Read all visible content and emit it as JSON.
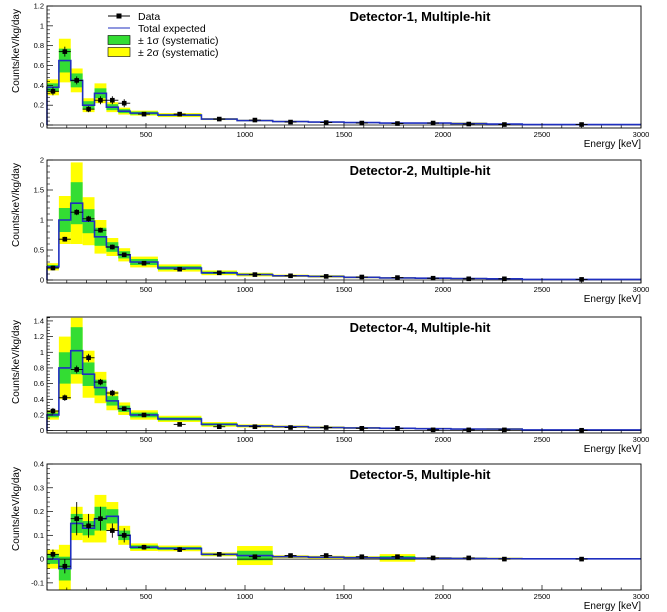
{
  "colors": {
    "total_expected": "#1f2fbf",
    "band_1sigma": "#33dd33",
    "band_2sigma": "#ffff00",
    "data": "#000000"
  },
  "legend": [
    {
      "label": "Data",
      "kind": "data"
    },
    {
      "label": "Total expected",
      "kind": "line"
    },
    {
      "label": "± 1σ (systematic)",
      "kind": "band1"
    },
    {
      "label": "± 2σ (systematic)",
      "kind": "band2"
    }
  ],
  "chart_data": [
    {
      "type": "histogram",
      "title": "Detector-1, Multiple-hit",
      "xlabel": "Energy [keV]",
      "ylabel": "Counts/keV/kg/day",
      "xlim": [
        0,
        3000
      ],
      "ylim": [
        -0.03,
        1.2
      ],
      "xticks": [
        500,
        1000,
        1500,
        2000,
        2500,
        3000
      ],
      "yticks": [
        0,
        0.2,
        0.4,
        0.6,
        0.8,
        1,
        1.2
      ],
      "bins": [
        0,
        60,
        120,
        180,
        240,
        300,
        360,
        420,
        560,
        780,
        960,
        1140,
        1320,
        1500,
        1680,
        1860,
        2040,
        2220,
        2400,
        3000
      ],
      "expected": [
        0.38,
        0.65,
        0.45,
        0.2,
        0.32,
        0.18,
        0.14,
        0.12,
        0.1,
        0.06,
        0.045,
        0.035,
        0.03,
        0.025,
        0.02,
        0.02,
        0.015,
        0.01,
        0.005
      ],
      "sigma1": [
        0.04,
        0.12,
        0.07,
        0.04,
        0.05,
        0.03,
        0.02,
        0.015,
        0.01,
        0.005,
        0.005,
        0.004,
        0.003,
        0.003,
        0.002,
        0.003,
        0.005,
        0.002,
        0.001
      ],
      "sigma2": [
        0.08,
        0.22,
        0.12,
        0.07,
        0.1,
        0.05,
        0.035,
        0.025,
        0.02,
        0.01,
        0.008,
        0.007,
        0.006,
        0.005,
        0.004,
        0.005,
        0.01,
        0.004,
        0.002
      ],
      "points": [
        {
          "x": 30,
          "y": 0.34,
          "e": 0.04
        },
        {
          "x": 90,
          "y": 0.74,
          "e": 0.05
        },
        {
          "x": 150,
          "y": 0.45,
          "e": 0.04
        },
        {
          "x": 210,
          "y": 0.16,
          "e": 0.03
        },
        {
          "x": 270,
          "y": 0.25,
          "e": 0.04
        },
        {
          "x": 330,
          "y": 0.25,
          "e": 0.04
        },
        {
          "x": 390,
          "y": 0.22,
          "e": 0.04
        },
        {
          "x": 490,
          "y": 0.11,
          "e": 0.01
        },
        {
          "x": 670,
          "y": 0.11,
          "e": 0.01
        },
        {
          "x": 870,
          "y": 0.06,
          "e": 0.005
        },
        {
          "x": 1050,
          "y": 0.05,
          "e": 0.005
        },
        {
          "x": 1230,
          "y": 0.03,
          "e": 0.004
        },
        {
          "x": 1410,
          "y": 0.025,
          "e": 0.004
        },
        {
          "x": 1590,
          "y": 0.02,
          "e": 0.003
        },
        {
          "x": 1770,
          "y": 0.015,
          "e": 0.003
        },
        {
          "x": 1950,
          "y": 0.02,
          "e": 0.003
        },
        {
          "x": 2130,
          "y": 0.01,
          "e": 0.003
        },
        {
          "x": 2310,
          "y": 0.005,
          "e": 0.002
        },
        {
          "x": 2700,
          "y": 0.005,
          "e": 0.002
        }
      ]
    },
    {
      "type": "histogram",
      "title": "Detector-2, Multiple-hit",
      "xlabel": "Energy [keV]",
      "ylabel": "Counts/keV/kg/day",
      "xlim": [
        0,
        3000
      ],
      "ylim": [
        -0.05,
        2.0
      ],
      "xticks": [
        500,
        1000,
        1500,
        2000,
        2500,
        3000
      ],
      "yticks": [
        0,
        0.5,
        1,
        1.5,
        2
      ],
      "bins": [
        0,
        60,
        120,
        180,
        240,
        300,
        360,
        420,
        560,
        780,
        960,
        1140,
        1320,
        1500,
        1680,
        1860,
        2040,
        2220,
        2400,
        3000
      ],
      "expected": [
        0.22,
        1.0,
        1.28,
        0.98,
        0.72,
        0.55,
        0.42,
        0.3,
        0.2,
        0.12,
        0.09,
        0.07,
        0.06,
        0.045,
        0.035,
        0.03,
        0.025,
        0.02,
        0.01
      ],
      "sigma1": [
        0.03,
        0.2,
        0.35,
        0.2,
        0.15,
        0.08,
        0.06,
        0.05,
        0.03,
        0.02,
        0.015,
        0.01,
        0.01,
        0.008,
        0.006,
        0.005,
        0.005,
        0.004,
        0.002
      ],
      "sigma2": [
        0.06,
        0.4,
        0.68,
        0.4,
        0.28,
        0.15,
        0.11,
        0.09,
        0.06,
        0.04,
        0.03,
        0.02,
        0.02,
        0.015,
        0.012,
        0.01,
        0.01,
        0.008,
        0.004
      ],
      "points": [
        {
          "x": 30,
          "y": 0.2,
          "e": 0.04
        },
        {
          "x": 90,
          "y": 0.68,
          "e": 0.04
        },
        {
          "x": 150,
          "y": 1.13,
          "e": 0.05
        },
        {
          "x": 210,
          "y": 1.02,
          "e": 0.05
        },
        {
          "x": 270,
          "y": 0.83,
          "e": 0.04
        },
        {
          "x": 330,
          "y": 0.55,
          "e": 0.04
        },
        {
          "x": 390,
          "y": 0.42,
          "e": 0.03
        },
        {
          "x": 490,
          "y": 0.28,
          "e": 0.02
        },
        {
          "x": 670,
          "y": 0.18,
          "e": 0.01
        },
        {
          "x": 870,
          "y": 0.12,
          "e": 0.01
        },
        {
          "x": 1050,
          "y": 0.09,
          "e": 0.01
        },
        {
          "x": 1230,
          "y": 0.07,
          "e": 0.005
        },
        {
          "x": 1410,
          "y": 0.06,
          "e": 0.005
        },
        {
          "x": 1590,
          "y": 0.05,
          "e": 0.005
        },
        {
          "x": 1770,
          "y": 0.04,
          "e": 0.005
        },
        {
          "x": 1950,
          "y": 0.03,
          "e": 0.005
        },
        {
          "x": 2130,
          "y": 0.02,
          "e": 0.004
        },
        {
          "x": 2310,
          "y": 0.02,
          "e": 0.004
        },
        {
          "x": 2700,
          "y": 0.01,
          "e": 0.003
        }
      ]
    },
    {
      "type": "histogram",
      "title": "Detector-4, Multiple-hit",
      "xlabel": "Energy [keV]",
      "ylabel": "Counts/keV/kg/day",
      "xlim": [
        0,
        3000
      ],
      "ylim": [
        -0.03,
        1.45
      ],
      "xticks": [
        500,
        1000,
        1500,
        2000,
        2500,
        3000
      ],
      "yticks": [
        0,
        0.2,
        0.4,
        0.6,
        0.8,
        1,
        1.2,
        1.4
      ],
      "bins": [
        0,
        60,
        120,
        180,
        240,
        300,
        360,
        420,
        560,
        780,
        960,
        1140,
        1320,
        1500,
        1680,
        1860,
        2040,
        2220,
        2400,
        3000
      ],
      "expected": [
        0.2,
        0.8,
        1.02,
        0.72,
        0.55,
        0.38,
        0.28,
        0.2,
        0.15,
        0.08,
        0.06,
        0.05,
        0.04,
        0.035,
        0.03,
        0.025,
        0.02,
        0.02,
        0.01
      ],
      "sigma1": [
        0.03,
        0.2,
        0.3,
        0.15,
        0.1,
        0.06,
        0.04,
        0.03,
        0.02,
        0.015,
        0.01,
        0.008,
        0.007,
        0.006,
        0.005,
        0.005,
        0.004,
        0.006,
        0.002
      ],
      "sigma2": [
        0.06,
        0.4,
        0.42,
        0.3,
        0.2,
        0.12,
        0.08,
        0.06,
        0.04,
        0.03,
        0.02,
        0.016,
        0.014,
        0.012,
        0.01,
        0.01,
        0.008,
        0.012,
        0.004
      ],
      "points": [
        {
          "x": 30,
          "y": 0.25,
          "e": 0.04
        },
        {
          "x": 90,
          "y": 0.42,
          "e": 0.04
        },
        {
          "x": 150,
          "y": 0.78,
          "e": 0.05
        },
        {
          "x": 210,
          "y": 0.93,
          "e": 0.05
        },
        {
          "x": 270,
          "y": 0.62,
          "e": 0.04
        },
        {
          "x": 330,
          "y": 0.48,
          "e": 0.04
        },
        {
          "x": 390,
          "y": 0.28,
          "e": 0.03
        },
        {
          "x": 490,
          "y": 0.2,
          "e": 0.02
        },
        {
          "x": 670,
          "y": 0.08,
          "e": 0.01
        },
        {
          "x": 870,
          "y": 0.05,
          "e": 0.008
        },
        {
          "x": 1050,
          "y": 0.05,
          "e": 0.008
        },
        {
          "x": 1230,
          "y": 0.04,
          "e": 0.006
        },
        {
          "x": 1410,
          "y": 0.04,
          "e": 0.006
        },
        {
          "x": 1590,
          "y": 0.03,
          "e": 0.005
        },
        {
          "x": 1770,
          "y": 0.03,
          "e": 0.005
        },
        {
          "x": 1950,
          "y": 0.01,
          "e": 0.005
        },
        {
          "x": 2130,
          "y": 0.01,
          "e": 0.004
        },
        {
          "x": 2310,
          "y": 0.01,
          "e": 0.004
        },
        {
          "x": 2700,
          "y": 0.005,
          "e": 0.003
        }
      ]
    },
    {
      "type": "histogram",
      "title": "Detector-5, Multiple-hit",
      "xlabel": "Energy [keV]",
      "ylabel": "Counts/keV/kg/day",
      "xlim": [
        0,
        3000
      ],
      "ylim": [
        -0.13,
        0.4
      ],
      "xticks": [
        500,
        1000,
        1500,
        2000,
        2500,
        3000
      ],
      "yticks": [
        -0.1,
        0,
        0.1,
        0.2,
        0.3,
        0.4
      ],
      "bins": [
        0,
        60,
        120,
        180,
        240,
        300,
        360,
        420,
        560,
        780,
        960,
        1140,
        1320,
        1500,
        1680,
        1860,
        2040,
        2220,
        2400,
        3000
      ],
      "expected": [
        0.0,
        -0.04,
        0.15,
        0.13,
        0.17,
        0.18,
        0.1,
        0.05,
        0.045,
        0.02,
        0.015,
        0.01,
        0.008,
        0.006,
        0.005,
        0.004,
        0.003,
        0.002,
        0.001
      ],
      "sigma1": [
        0.02,
        0.05,
        0.04,
        0.03,
        0.05,
        0.03,
        0.02,
        0.008,
        0.006,
        0.004,
        0.02,
        0.003,
        0.003,
        0.003,
        0.008,
        0.002,
        0.002,
        0.002,
        0.001
      ],
      "sigma2": [
        0.04,
        0.1,
        0.07,
        0.06,
        0.1,
        0.06,
        0.04,
        0.016,
        0.012,
        0.008,
        0.04,
        0.006,
        0.006,
        0.006,
        0.016,
        0.004,
        0.004,
        0.004,
        0.002
      ],
      "points": [
        {
          "x": 30,
          "y": 0.02,
          "e": 0.02
        },
        {
          "x": 90,
          "y": -0.03,
          "e": 0.03
        },
        {
          "x": 150,
          "y": 0.17,
          "e": 0.07
        },
        {
          "x": 210,
          "y": 0.14,
          "e": 0.05
        },
        {
          "x": 270,
          "y": 0.17,
          "e": 0.05
        },
        {
          "x": 330,
          "y": 0.12,
          "e": 0.03
        },
        {
          "x": 390,
          "y": 0.1,
          "e": 0.03
        },
        {
          "x": 490,
          "y": 0.05,
          "e": 0.01
        },
        {
          "x": 670,
          "y": 0.04,
          "e": 0.01
        },
        {
          "x": 870,
          "y": 0.02,
          "e": 0.005
        },
        {
          "x": 1050,
          "y": 0.01,
          "e": 0.005
        },
        {
          "x": 1230,
          "y": 0.015,
          "e": 0.004
        },
        {
          "x": 1410,
          "y": 0.015,
          "e": 0.004
        },
        {
          "x": 1590,
          "y": 0.01,
          "e": 0.003
        },
        {
          "x": 1770,
          "y": 0.01,
          "e": 0.003
        },
        {
          "x": 1950,
          "y": 0.005,
          "e": 0.003
        },
        {
          "x": 2130,
          "y": 0.005,
          "e": 0.002
        },
        {
          "x": 2310,
          "y": 0.0,
          "e": 0.002
        },
        {
          "x": 2700,
          "y": 0.0,
          "e": 0.002
        }
      ]
    }
  ]
}
